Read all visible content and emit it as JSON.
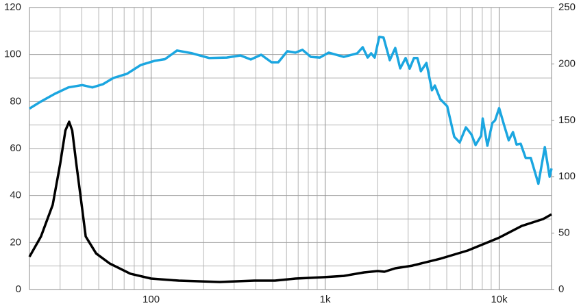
{
  "chart_data": {
    "type": "line",
    "xscale": "log",
    "grid": true,
    "xlim": [
      20,
      20000
    ],
    "xticks": [
      100,
      {
        "value": 1000,
        "label": "1k"
      },
      {
        "value": 10000,
        "label": "10k"
      }
    ],
    "ylim": [
      0,
      120
    ],
    "yticks": [
      0,
      20,
      40,
      60,
      80,
      100,
      120
    ],
    "y2lim": [
      0,
      250
    ],
    "y2ticks": [
      0,
      50,
      100,
      150,
      200,
      250
    ],
    "series": [
      {
        "color": "#1ba6e0",
        "axis": "y",
        "x": [
          20,
          23.3,
          28,
          33.5,
          40.2,
          46,
          53,
          60.6,
          72.7,
          87,
          104.6,
          120,
          141,
          172,
          216,
          272,
          326,
          374,
          429,
          492,
          538,
          606,
          676,
          741,
          827,
          932,
          1049,
          1279,
          1529,
          1645,
          1755,
          1838,
          1925,
          2048,
          2166,
          2353,
          2530,
          2700,
          2900,
          3060,
          3240,
          3390,
          3550,
          3820,
          4110,
          4270,
          4590,
          5030,
          5520,
          5930,
          6440,
          6930,
          7320,
          7890,
          8040,
          8560,
          9130,
          9480,
          10000,
          10650,
          11350,
          12000,
          12600,
          13300,
          14200,
          15200,
          16800,
          18300,
          19500,
          20000
        ],
        "values": [
          77,
          80,
          83.3,
          86,
          87,
          86,
          87.4,
          90,
          91.8,
          95.5,
          97.3,
          98,
          101.7,
          100.5,
          98.5,
          98.7,
          99.6,
          97.9,
          99.9,
          96.7,
          96.7,
          101.4,
          100.8,
          102,
          99,
          98.7,
          100.8,
          99,
          100.5,
          103.1,
          98.7,
          100.5,
          98.7,
          107.5,
          107.2,
          97.6,
          102.8,
          94.1,
          98.5,
          94,
          98.5,
          98.5,
          92.9,
          96.4,
          84.8,
          86.8,
          81,
          78,
          65,
          62.6,
          69,
          66,
          61.5,
          65.5,
          72.8,
          61.2,
          70.8,
          72,
          77.2,
          70.2,
          63.5,
          67,
          61.7,
          62,
          56,
          56,
          45,
          60.6,
          48,
          51.5
        ]
      },
      {
        "color": "#000000",
        "axis": "y2",
        "x": [
          20,
          23.3,
          27.2,
          30,
          32.2,
          33.8,
          35.2,
          37.2,
          39.9,
          42.1,
          48.3,
          57.9,
          76,
          100,
          144,
          248,
          392,
          515,
          676,
          975,
          1279,
          1674,
          2006,
          2191,
          2530,
          3170,
          4590,
          6600,
          10000,
          13500,
          17900,
          20000
        ],
        "values": [
          29,
          47,
          75,
          111,
          141,
          148.7,
          141,
          111,
          75,
          47,
          32,
          23,
          14,
          9.7,
          7.9,
          6.7,
          7.9,
          7.9,
          9.7,
          10.9,
          12.1,
          15.2,
          16.4,
          15.8,
          18.8,
          21.2,
          27.3,
          34.6,
          46,
          56.4,
          62.5,
          66.7
        ]
      }
    ]
  }
}
